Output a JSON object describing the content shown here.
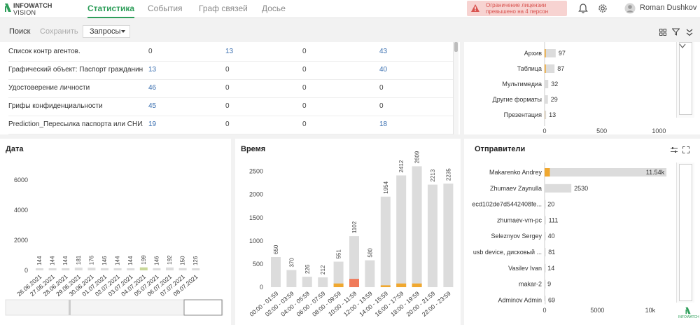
{
  "header": {
    "logo_line1": "INFOWATCH",
    "logo_line2": "VISION",
    "tabs": [
      {
        "label": "Статистика",
        "active": true
      },
      {
        "label": "События",
        "active": false
      },
      {
        "label": "Граф связей",
        "active": false
      },
      {
        "label": "Досье",
        "active": false
      }
    ],
    "license_line1": "Ограничение лицензии",
    "license_line2": "превышено на 4 персон",
    "user_name": "Roman Dushkov",
    "accent": "#2e9e5a",
    "warning_color": "#d9534f",
    "icons": [
      "bell-icon",
      "gear-icon",
      "user-avatar-icon"
    ]
  },
  "toolbar": {
    "search_label": "Поиск",
    "save_label": "Сохранить",
    "queries_label": "Запросы"
  },
  "policies_table": {
    "rows": [
      {
        "name": "Список контр агентов.",
        "c1": "0",
        "c2": "13",
        "c3": "0",
        "c4": "43"
      },
      {
        "name": "Графический объект: Паспорт гражданина Р",
        "c1": "13",
        "c2": "0",
        "c3": "0",
        "c4": "40"
      },
      {
        "name": "Удостоверение личности",
        "c1": "46",
        "c2": "0",
        "c3": "0",
        "c4": "0"
      },
      {
        "name": "Грифы конфиденциальности",
        "c1": "45",
        "c2": "0",
        "c3": "0",
        "c4": "0"
      },
      {
        "name": "Prediction_Пересылка паспорта или СНИЛС",
        "c1": "19",
        "c2": "0",
        "c3": "0",
        "c4": "18"
      }
    ]
  },
  "chart_data": [
    {
      "type": "bar",
      "title": "",
      "categories": [
        "Архив",
        "Таблица",
        "Мультимедиа",
        "Другие форматы",
        "Презентация"
      ],
      "values": [
        97,
        87,
        32,
        29,
        13
      ],
      "highlight_values": [
        10,
        10,
        0,
        0,
        2
      ],
      "orientation": "horizontal",
      "xticks": [
        "0",
        "500",
        "1000"
      ],
      "xlim": [
        0,
        1120
      ]
    },
    {
      "type": "bar",
      "title": "Дата",
      "categories": [
        "26.06.2021",
        "27.06.2021",
        "28.06.2021",
        "29.06.2021",
        "30.06.2021",
        "01.07.2021",
        "02.07.2021",
        "03.07.2021",
        "04.07.2021",
        "05.07.2021",
        "06.07.2021",
        "07.07.2021",
        "08.07.2021"
      ],
      "values": [
        144,
        144,
        144,
        181,
        176,
        146,
        144,
        144,
        199,
        146,
        192,
        150,
        126
      ],
      "yticks": [
        "0",
        "2000",
        "4000",
        "6000"
      ],
      "ylim": [
        0,
        6800
      ]
    },
    {
      "type": "bar",
      "title": "Время",
      "categories": [
        "00:00 - 01:59",
        "02:00 - 03:59",
        "04:00 - 05:59",
        "06:00 - 07:59",
        "08:00 - 09:59",
        "10:00 - 11:59",
        "12:00 - 13:59",
        "14:00 - 15:59",
        "16:00 - 17:59",
        "18:00 - 19:59",
        "20:00 - 21:59",
        "22:00 - 23:59"
      ],
      "values": [
        650,
        370,
        226,
        212,
        551,
        1102,
        580,
        1954,
        2412,
        2609,
        2213,
        2235
      ],
      "highlight_values": [
        0,
        0,
        0,
        0,
        80,
        180,
        0,
        40,
        80,
        80,
        0,
        0
      ],
      "yticks": [
        "0",
        "500",
        "1000",
        "1500",
        "2000",
        "2500"
      ],
      "ylim": [
        0,
        2600
      ]
    },
    {
      "type": "bar",
      "title": "Отправители",
      "orientation": "horizontal",
      "categories": [
        "Makarenko Andrey",
        "Zhumaev Zaynulla",
        "ecd102de7d5442408fe...",
        "zhumaev-vm-pc",
        "Seleznyov Sergey",
        "usb device, дисковый ...",
        "Vasilev Ivan",
        "makar-2",
        "Adminov Admin"
      ],
      "values": [
        11540,
        2530,
        20,
        111,
        40,
        81,
        14,
        9,
        69
      ],
      "value_labels": [
        "11.54k",
        "2530",
        "20",
        "111",
        "40",
        "81",
        "14",
        "9",
        "69"
      ],
      "highlight_values": [
        500,
        0,
        0,
        0,
        0,
        0,
        0,
        0,
        0
      ],
      "xticks": [
        "0",
        "5000",
        "10k"
      ],
      "xlim": [
        0,
        11600
      ]
    }
  ],
  "colors": {
    "bar_gray": "#dcdcdc",
    "bar_orange": "#f0a830",
    "bar_red": "#f07a5a",
    "bar_green": "#c9d89a"
  },
  "corner_logo": "INFOWATCH"
}
